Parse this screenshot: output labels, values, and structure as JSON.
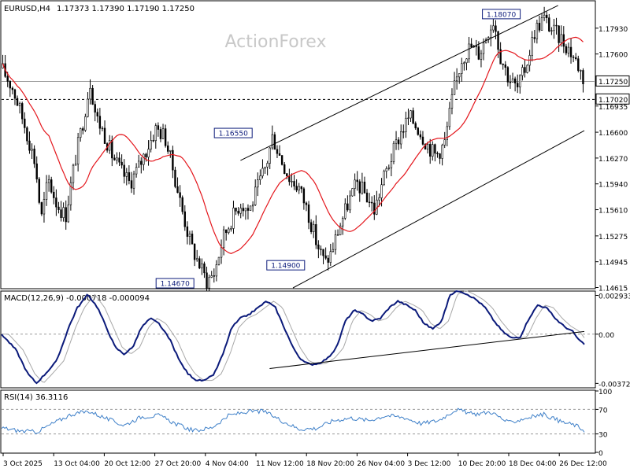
{
  "header": {
    "symbol": "EURUSD,H4",
    "ohlc": "1.17373 1.17390 1.17190 1.17250"
  },
  "watermark": "ActionForex",
  "colors": {
    "background": "#ffffff",
    "candles": "#000000",
    "moving_average": "#e4161c",
    "channel": "#000000",
    "macd": "#0b1a7a",
    "macd_signal": "#a8a8a8",
    "rsi": "#3d7fc8",
    "label_border": "#0b1a7a",
    "watermark": "#c8c8c8"
  },
  "chart_data": [
    {
      "type": "candlestick",
      "name": "EURUSD,H4",
      "ylim": [
        1.1461,
        1.1827
      ],
      "y_ticks": [
        "1.17930",
        "1.17600",
        "1.17250",
        "1.16935",
        "1.16600",
        "1.16270",
        "1.15940",
        "1.15610",
        "1.15275",
        "1.14945",
        "1.14615"
      ],
      "y_tick_values": [
        1.1793,
        1.176,
        1.1725,
        1.16935,
        1.166,
        1.1627,
        1.1594,
        1.1561,
        1.15275,
        1.14945,
        1.14615
      ],
      "current_price": "1.17250",
      "current_price_value": 1.1725,
      "horizontal_level": "1.17020",
      "horizontal_level_value": 1.1702,
      "x_labels": [
        "3 Oct 2025",
        "13 Oct 04:00",
        "20 Oct 12:00",
        "27 Oct 20:00",
        "4 Nov 04:00",
        "11 Nov 12:00",
        "18 Nov 20:00",
        "26 Nov 04:00",
        "3 Dec 12:00",
        "10 Dec 20:00",
        "18 Dec 04:00",
        "26 Dec 12:00"
      ],
      "price_path": [
        {
          "t": 0,
          "p": 1.1742
        },
        {
          "t": 0.02,
          "p": 1.1715
        },
        {
          "t": 0.04,
          "p": 1.1668
        },
        {
          "t": 0.058,
          "p": 1.162
        },
        {
          "t": 0.068,
          "p": 1.1548
        },
        {
          "t": 0.08,
          "p": 1.16
        },
        {
          "t": 0.095,
          "p": 1.1568
        },
        {
          "t": 0.11,
          "p": 1.1553
        },
        {
          "t": 0.125,
          "p": 1.162
        },
        {
          "t": 0.14,
          "p": 1.1675
        },
        {
          "t": 0.152,
          "p": 1.1725
        },
        {
          "t": 0.162,
          "p": 1.168
        },
        {
          "t": 0.175,
          "p": 1.166
        },
        {
          "t": 0.19,
          "p": 1.163
        },
        {
          "t": 0.205,
          "p": 1.161
        },
        {
          "t": 0.22,
          "p": 1.1595
        },
        {
          "t": 0.235,
          "p": 1.1615
        },
        {
          "t": 0.25,
          "p": 1.164
        },
        {
          "t": 0.265,
          "p": 1.1665
        },
        {
          "t": 0.28,
          "p": 1.1655
        },
        {
          "t": 0.295,
          "p": 1.161
        },
        {
          "t": 0.31,
          "p": 1.156
        },
        {
          "t": 0.325,
          "p": 1.1515
        },
        {
          "t": 0.34,
          "p": 1.149
        },
        {
          "t": 0.352,
          "p": 1.147
        },
        {
          "t": 0.365,
          "p": 1.148
        },
        {
          "t": 0.38,
          "p": 1.1525
        },
        {
          "t": 0.395,
          "p": 1.155
        },
        {
          "t": 0.41,
          "p": 1.157
        },
        {
          "t": 0.425,
          "p": 1.156
        },
        {
          "t": 0.44,
          "p": 1.159
        },
        {
          "t": 0.455,
          "p": 1.162
        },
        {
          "t": 0.465,
          "p": 1.1655
        },
        {
          "t": 0.48,
          "p": 1.1625
        },
        {
          "t": 0.495,
          "p": 1.16
        },
        {
          "t": 0.51,
          "p": 1.159
        },
        {
          "t": 0.525,
          "p": 1.156
        },
        {
          "t": 0.54,
          "p": 1.152
        },
        {
          "t": 0.555,
          "p": 1.1492
        },
        {
          "t": 0.565,
          "p": 1.1505
        },
        {
          "t": 0.58,
          "p": 1.154
        },
        {
          "t": 0.595,
          "p": 1.157
        },
        {
          "t": 0.61,
          "p": 1.1595
        },
        {
          "t": 0.625,
          "p": 1.158
        },
        {
          "t": 0.64,
          "p": 1.156
        },
        {
          "t": 0.655,
          "p": 1.16
        },
        {
          "t": 0.67,
          "p": 1.163
        },
        {
          "t": 0.685,
          "p": 1.166
        },
        {
          "t": 0.7,
          "p": 1.168
        },
        {
          "t": 0.715,
          "p": 1.1665
        },
        {
          "t": 0.73,
          "p": 1.1645
        },
        {
          "t": 0.745,
          "p": 1.163
        },
        {
          "t": 0.76,
          "p": 1.1645
        },
        {
          "t": 0.775,
          "p": 1.171
        },
        {
          "t": 0.79,
          "p": 1.1755
        },
        {
          "t": 0.805,
          "p": 1.177
        },
        {
          "t": 0.82,
          "p": 1.176
        },
        {
          "t": 0.835,
          "p": 1.179
        },
        {
          "t": 0.845,
          "p": 1.1805
        },
        {
          "t": 0.855,
          "p": 1.176
        },
        {
          "t": 0.87,
          "p": 1.173
        },
        {
          "t": 0.885,
          "p": 1.1715
        },
        {
          "t": 0.9,
          "p": 1.1745
        },
        {
          "t": 0.915,
          "p": 1.179
        },
        {
          "t": 0.93,
          "p": 1.1806
        },
        {
          "t": 0.945,
          "p": 1.179
        },
        {
          "t": 0.96,
          "p": 1.178
        },
        {
          "t": 0.975,
          "p": 1.1765
        },
        {
          "t": 0.99,
          "p": 1.1745
        },
        {
          "t": 1.0,
          "p": 1.1725
        }
      ],
      "channel": {
        "upper": [
          {
            "t": 0.41,
            "p": 1.1624
          },
          {
            "t": 0.955,
            "p": 1.1822
          }
        ],
        "lower": [
          {
            "t": 0.5,
            "p": 1.1461
          },
          {
            "t": 1.0,
            "p": 1.1662
          }
        ]
      },
      "annotations": [
        {
          "label": "1.18070",
          "t": 0.89,
          "p": 1.1807
        },
        {
          "label": "1.16550",
          "t": 0.43,
          "p": 1.1655
        },
        {
          "label": "1.14900",
          "t": 0.52,
          "p": 1.149
        },
        {
          "label": "1.14670",
          "t": 0.33,
          "p": 1.1467
        }
      ]
    },
    {
      "type": "line",
      "name": "MACD(12,26,9)",
      "title": "MACD(12,26,9) -0.000718 -0.000094",
      "ylim": [
        -0.004,
        0.0032
      ],
      "y_ticks": [
        "0.002933",
        "0.00",
        "-0.003724"
      ],
      "y_tick_values": [
        0.002933,
        0.0,
        -0.003724
      ],
      "macd_path": [
        {
          "t": 0,
          "v": 0.0
        },
        {
          "t": 0.025,
          "v": -0.0012
        },
        {
          "t": 0.045,
          "v": -0.003
        },
        {
          "t": 0.06,
          "v": -0.0037
        },
        {
          "t": 0.075,
          "v": -0.003
        },
        {
          "t": 0.095,
          "v": -0.002
        },
        {
          "t": 0.115,
          "v": 0.0005
        },
        {
          "t": 0.13,
          "v": 0.002
        },
        {
          "t": 0.148,
          "v": 0.003
        },
        {
          "t": 0.165,
          "v": 0.002
        },
        {
          "t": 0.18,
          "v": 0.0005
        },
        {
          "t": 0.195,
          "v": -0.001
        },
        {
          "t": 0.21,
          "v": -0.0015
        },
        {
          "t": 0.225,
          "v": -0.001
        },
        {
          "t": 0.24,
          "v": 0.0005
        },
        {
          "t": 0.255,
          "v": 0.0012
        },
        {
          "t": 0.27,
          "v": 0.0008
        },
        {
          "t": 0.29,
          "v": -0.0005
        },
        {
          "t": 0.305,
          "v": -0.002
        },
        {
          "t": 0.32,
          "v": -0.003
        },
        {
          "t": 0.335,
          "v": -0.0035
        },
        {
          "t": 0.35,
          "v": -0.0035
        },
        {
          "t": 0.365,
          "v": -0.003
        },
        {
          "t": 0.38,
          "v": -0.0015
        },
        {
          "t": 0.395,
          "v": 0.0005
        },
        {
          "t": 0.41,
          "v": 0.0012
        },
        {
          "t": 0.425,
          "v": 0.0015
        },
        {
          "t": 0.44,
          "v": 0.002
        },
        {
          "t": 0.455,
          "v": 0.0025
        },
        {
          "t": 0.47,
          "v": 0.002
        },
        {
          "t": 0.485,
          "v": 0.0005
        },
        {
          "t": 0.5,
          "v": -0.001
        },
        {
          "t": 0.515,
          "v": -0.002
        },
        {
          "t": 0.53,
          "v": -0.0023
        },
        {
          "t": 0.545,
          "v": -0.0022
        },
        {
          "t": 0.56,
          "v": -0.0018
        },
        {
          "t": 0.575,
          "v": -0.001
        },
        {
          "t": 0.59,
          "v": 0.001
        },
        {
          "t": 0.605,
          "v": 0.0018
        },
        {
          "t": 0.62,
          "v": 0.0015
        },
        {
          "t": 0.635,
          "v": 0.001
        },
        {
          "t": 0.65,
          "v": 0.0012
        },
        {
          "t": 0.665,
          "v": 0.002
        },
        {
          "t": 0.68,
          "v": 0.0025
        },
        {
          "t": 0.695,
          "v": 0.0022
        },
        {
          "t": 0.71,
          "v": 0.0018
        },
        {
          "t": 0.725,
          "v": 0.0008
        },
        {
          "t": 0.74,
          "v": 0.0004
        },
        {
          "t": 0.755,
          "v": 0.001
        },
        {
          "t": 0.77,
          "v": 0.003
        },
        {
          "t": 0.785,
          "v": 0.0033
        },
        {
          "t": 0.8,
          "v": 0.003
        },
        {
          "t": 0.815,
          "v": 0.0026
        },
        {
          "t": 0.83,
          "v": 0.002
        },
        {
          "t": 0.845,
          "v": 0.001
        },
        {
          "t": 0.86,
          "v": 0.0002
        },
        {
          "t": 0.875,
          "v": -0.0003
        },
        {
          "t": 0.89,
          "v": -0.0002
        },
        {
          "t": 0.905,
          "v": 0.0012
        },
        {
          "t": 0.92,
          "v": 0.0022
        },
        {
          "t": 0.935,
          "v": 0.002
        },
        {
          "t": 0.95,
          "v": 0.0012
        },
        {
          "t": 0.965,
          "v": 0.0006
        },
        {
          "t": 0.98,
          "v": 0.0002
        },
        {
          "t": 0.99,
          "v": -0.0004
        },
        {
          "t": 1.0,
          "v": -0.0008
        }
      ],
      "signal_lag": 0.012,
      "trendline": [
        {
          "t": 0.46,
          "v": -0.0026
        },
        {
          "t": 1.0,
          "v": 0.0002
        }
      ]
    },
    {
      "type": "line",
      "name": "RSI(14)",
      "title": "RSI(14) 36.3116",
      "ylim": [
        0,
        100
      ],
      "y_ticks": [
        "100",
        "70",
        "30",
        "0"
      ],
      "y_tick_values": [
        100,
        70,
        30,
        0
      ],
      "rsi_path": [
        {
          "t": 0,
          "v": 40
        },
        {
          "t": 0.03,
          "v": 35
        },
        {
          "t": 0.06,
          "v": 33
        },
        {
          "t": 0.09,
          "v": 48
        },
        {
          "t": 0.12,
          "v": 62
        },
        {
          "t": 0.15,
          "v": 67
        },
        {
          "t": 0.18,
          "v": 55
        },
        {
          "t": 0.21,
          "v": 44
        },
        {
          "t": 0.24,
          "v": 58
        },
        {
          "t": 0.27,
          "v": 60
        },
        {
          "t": 0.3,
          "v": 46
        },
        {
          "t": 0.33,
          "v": 35
        },
        {
          "t": 0.36,
          "v": 40
        },
        {
          "t": 0.39,
          "v": 60
        },
        {
          "t": 0.42,
          "v": 66
        },
        {
          "t": 0.45,
          "v": 67
        },
        {
          "t": 0.48,
          "v": 52
        },
        {
          "t": 0.51,
          "v": 38
        },
        {
          "t": 0.54,
          "v": 39
        },
        {
          "t": 0.57,
          "v": 52
        },
        {
          "t": 0.6,
          "v": 56
        },
        {
          "t": 0.63,
          "v": 52
        },
        {
          "t": 0.66,
          "v": 60
        },
        {
          "t": 0.69,
          "v": 57
        },
        {
          "t": 0.72,
          "v": 47
        },
        {
          "t": 0.75,
          "v": 52
        },
        {
          "t": 0.78,
          "v": 70
        },
        {
          "t": 0.81,
          "v": 62
        },
        {
          "t": 0.84,
          "v": 66
        },
        {
          "t": 0.87,
          "v": 48
        },
        {
          "t": 0.9,
          "v": 56
        },
        {
          "t": 0.93,
          "v": 62
        },
        {
          "t": 0.96,
          "v": 50
        },
        {
          "t": 0.985,
          "v": 44
        },
        {
          "t": 1.0,
          "v": 36
        }
      ]
    }
  ]
}
